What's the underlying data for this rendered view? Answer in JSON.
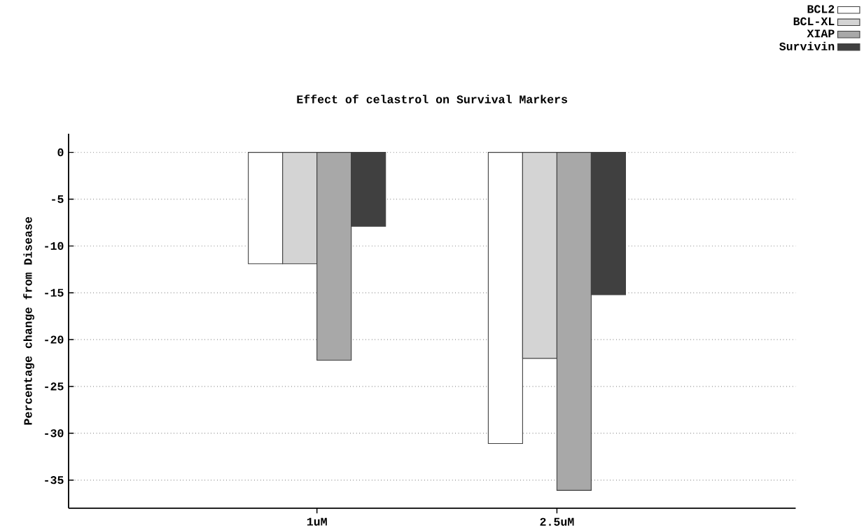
{
  "chart_data": {
    "type": "bar",
    "title": "Effect of celastrol on Survival Markers",
    "ylabel": "Percentage change from Disease",
    "categories": [
      "1uM",
      "2.5uM"
    ],
    "series": [
      {
        "name": "BCL2",
        "color": "#ffffff",
        "values": [
          -11.9,
          -31.1
        ]
      },
      {
        "name": "BCL-XL",
        "color": "#d4d4d4",
        "values": [
          -11.9,
          -22
        ]
      },
      {
        "name": "XIAP",
        "color": "#a8a8a8",
        "values": [
          -22.2,
          -36.1
        ]
      },
      {
        "name": "Survivin",
        "color": "#404040",
        "values": [
          -7.9,
          -15.2
        ]
      }
    ],
    "ylim": [
      -38,
      2
    ],
    "yticks": [
      0,
      -5,
      -10,
      -15,
      -20,
      -25,
      -30,
      -35
    ],
    "grid": "y",
    "legend": "top right"
  }
}
